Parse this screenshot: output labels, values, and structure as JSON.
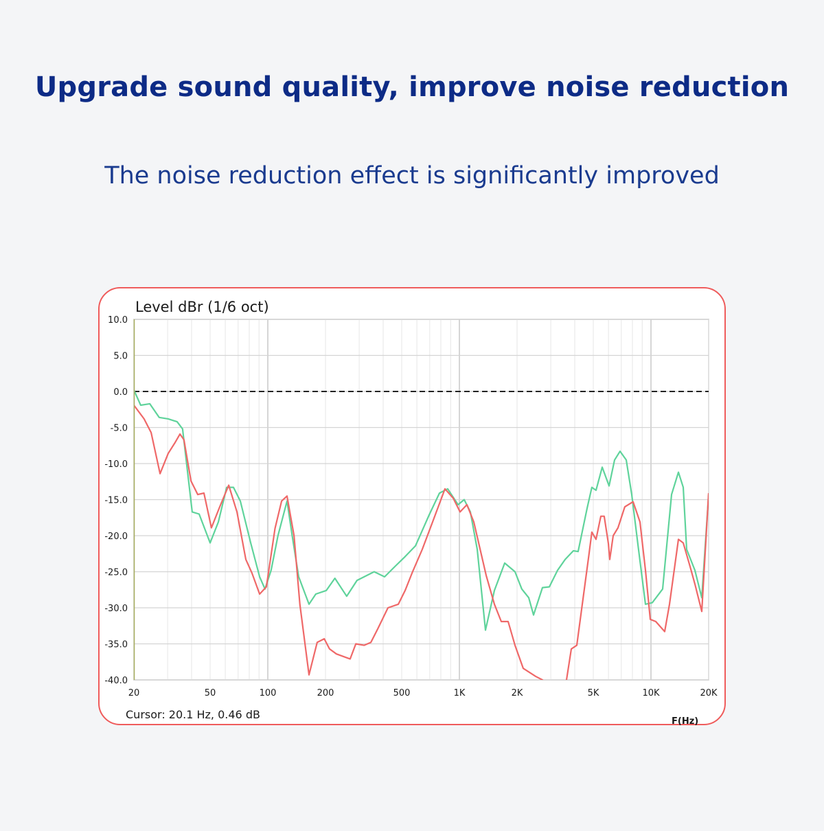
{
  "header": {
    "title": "Upgrade sound quality, improve noise reduction",
    "subtitle": "The noise reduction effect is significantly improved"
  },
  "colors": {
    "title": "#0d2b86",
    "card_border": "#ef5b5b",
    "series_green": "#5fd39b",
    "series_red": "#ef6868",
    "background": "#f4f5f7"
  },
  "chart_data": {
    "type": "line",
    "title": "Level dBr (1/6 oct)",
    "xlabel": "F(Hz)",
    "xscale": "log",
    "xlim": [
      20,
      20000
    ],
    "ylim": [
      -40,
      10
    ],
    "grid": true,
    "yticks": [
      10,
      5,
      0,
      -5,
      -10,
      -15,
      -20,
      -25,
      -30,
      -35,
      -40
    ],
    "ytick_labels": [
      "10.0",
      "5.0",
      "0.0",
      "-5.0",
      "-10.0",
      "-15.0",
      "-20.0",
      "-25.0",
      "-30.0",
      "-35.0",
      "-40.0"
    ],
    "xticks": [
      20,
      50,
      100,
      200,
      500,
      1000,
      2000,
      5000,
      10000,
      20000
    ],
    "xtick_labels": [
      "20",
      "50",
      "100",
      "200",
      "500",
      "1K",
      "2K",
      "5K",
      "10K",
      "20K"
    ],
    "reference_line": {
      "y": 0,
      "style": "dashed",
      "color": "#222222"
    },
    "cursor_readout": "Cursor: 20.1 Hz, 0.46 dB",
    "series": [
      {
        "color": "#5fd39b",
        "points": [
          [
            20,
            0.2
          ],
          [
            21.7,
            -1.9
          ],
          [
            24.2,
            -1.7
          ],
          [
            27.1,
            -3.6
          ],
          [
            30.2,
            -3.8
          ],
          [
            33.6,
            -4.2
          ],
          [
            35.9,
            -5.2
          ],
          [
            40.3,
            -16.7
          ],
          [
            43.8,
            -17.0
          ],
          [
            50,
            -21.0
          ],
          [
            55.2,
            -18.1
          ],
          [
            61,
            -13.3
          ],
          [
            66.2,
            -13.3
          ],
          [
            71.9,
            -15.2
          ],
          [
            81.4,
            -21.0
          ],
          [
            90.6,
            -25.7
          ],
          [
            96.7,
            -27.4
          ],
          [
            104,
            -24.8
          ],
          [
            113,
            -20.0
          ],
          [
            126,
            -15.2
          ],
          [
            134,
            -20.0
          ],
          [
            145,
            -25.7
          ],
          [
            164,
            -29.5
          ],
          [
            178,
            -28.1
          ],
          [
            202,
            -27.6
          ],
          [
            224,
            -25.9
          ],
          [
            258,
            -28.4
          ],
          [
            292,
            -26.2
          ],
          [
            359,
            -25.0
          ],
          [
            407,
            -25.7
          ],
          [
            460,
            -24.3
          ],
          [
            521,
            -22.9
          ],
          [
            590,
            -21.4
          ],
          [
            696,
            -17.1
          ],
          [
            787,
            -14.1
          ],
          [
            869,
            -13.5
          ],
          [
            984,
            -15.7
          ],
          [
            1059,
            -15.0
          ],
          [
            1141,
            -16.7
          ],
          [
            1239,
            -21.9
          ],
          [
            1368,
            -33.1
          ],
          [
            1523,
            -27.6
          ],
          [
            1724,
            -23.8
          ],
          [
            1951,
            -25.0
          ],
          [
            2118,
            -27.4
          ],
          [
            2301,
            -28.6
          ],
          [
            2438,
            -31.0
          ],
          [
            2714,
            -27.2
          ],
          [
            2947,
            -27.1
          ],
          [
            3254,
            -24.8
          ],
          [
            3563,
            -23.3
          ],
          [
            3934,
            -22.1
          ],
          [
            4167,
            -22.2
          ],
          [
            4640,
            -16.2
          ],
          [
            4915,
            -13.3
          ],
          [
            5166,
            -13.7
          ],
          [
            5564,
            -10.5
          ],
          [
            6043,
            -13.1
          ],
          [
            6454,
            -9.5
          ],
          [
            6895,
            -8.3
          ],
          [
            7428,
            -9.5
          ],
          [
            7934,
            -14.3
          ],
          [
            8615,
            -21.9
          ],
          [
            9359,
            -29.5
          ],
          [
            10160,
            -29.3
          ],
          [
            11505,
            -27.4
          ],
          [
            12806,
            -14.3
          ],
          [
            13908,
            -11.2
          ],
          [
            14735,
            -13.3
          ],
          [
            15358,
            -21.9
          ],
          [
            16954,
            -24.8
          ],
          [
            18415,
            -28.6
          ],
          [
            20000,
            -14.3
          ]
        ]
      },
      {
        "color": "#ef6868",
        "points": [
          [
            20,
            -1.9
          ],
          [
            22.6,
            -3.8
          ],
          [
            24.6,
            -5.7
          ],
          [
            27.4,
            -11.4
          ],
          [
            30.2,
            -8.6
          ],
          [
            32.8,
            -7.1
          ],
          [
            34.8,
            -5.9
          ],
          [
            36.5,
            -6.7
          ],
          [
            39.7,
            -12.4
          ],
          [
            43.1,
            -14.3
          ],
          [
            46.4,
            -14.1
          ],
          [
            50.8,
            -18.9
          ],
          [
            56.1,
            -16.0
          ],
          [
            62.5,
            -13.0
          ],
          [
            69,
            -16.7
          ],
          [
            76.8,
            -23.3
          ],
          [
            82.7,
            -25.2
          ],
          [
            90.6,
            -28.1
          ],
          [
            98.3,
            -27.1
          ],
          [
            109,
            -19.0
          ],
          [
            118,
            -15.2
          ],
          [
            126,
            -14.5
          ],
          [
            137,
            -20.0
          ],
          [
            147,
            -29.5
          ],
          [
            164,
            -39.3
          ],
          [
            181,
            -34.8
          ],
          [
            197,
            -34.3
          ],
          [
            210,
            -35.7
          ],
          [
            228,
            -36.4
          ],
          [
            269,
            -37.1
          ],
          [
            288,
            -35.0
          ],
          [
            318,
            -35.2
          ],
          [
            345,
            -34.8
          ],
          [
            375,
            -32.9
          ],
          [
            424,
            -30.0
          ],
          [
            480,
            -29.5
          ],
          [
            521,
            -27.6
          ],
          [
            566,
            -25.2
          ],
          [
            640,
            -21.9
          ],
          [
            725,
            -18.1
          ],
          [
            841,
            -13.5
          ],
          [
            928,
            -14.8
          ],
          [
            1008,
            -16.7
          ],
          [
            1095,
            -15.7
          ],
          [
            1189,
            -18.1
          ],
          [
            1380,
            -25.5
          ],
          [
            1523,
            -29.5
          ],
          [
            1654,
            -31.9
          ],
          [
            1797,
            -31.9
          ],
          [
            1951,
            -35.2
          ],
          [
            2154,
            -38.4
          ],
          [
            2499,
            -39.5
          ],
          [
            2714,
            -40.0
          ],
          [
            3100,
            -42.0
          ],
          [
            3500,
            -42.0
          ],
          [
            3622,
            -40.0
          ],
          [
            3838,
            -35.7
          ],
          [
            4101,
            -35.2
          ],
          [
            4380,
            -29.5
          ],
          [
            4757,
            -22.4
          ],
          [
            4915,
            -19.5
          ],
          [
            5166,
            -20.5
          ],
          [
            5473,
            -17.3
          ],
          [
            5702,
            -17.3
          ],
          [
            5993,
            -21.1
          ],
          [
            6093,
            -23.3
          ],
          [
            6349,
            -20.0
          ],
          [
            6727,
            -18.9
          ],
          [
            7304,
            -16.0
          ],
          [
            8065,
            -15.3
          ],
          [
            8760,
            -18.1
          ],
          [
            9359,
            -24.8
          ],
          [
            9913,
            -31.6
          ],
          [
            10590,
            -31.9
          ],
          [
            11794,
            -33.3
          ],
          [
            12497,
            -29.5
          ],
          [
            13908,
            -20.5
          ],
          [
            14735,
            -21.0
          ],
          [
            16001,
            -24.3
          ],
          [
            16954,
            -26.7
          ],
          [
            18415,
            -30.5
          ],
          [
            20000,
            -14.1
          ]
        ]
      }
    ]
  }
}
